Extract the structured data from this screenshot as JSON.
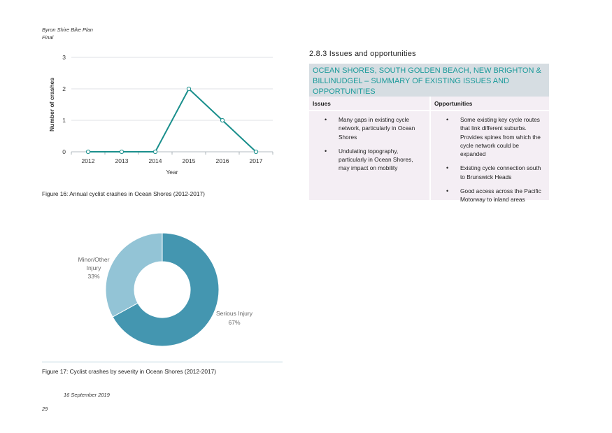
{
  "header": {
    "line1": "Byron Shire Bike Plan",
    "line2": "Final"
  },
  "figure16": {
    "caption": "Figure 16: Annual cyclist crashes in Ocean Shores (2012-2017)"
  },
  "figure17": {
    "caption": "Figure 17: Cyclist crashes by severity in Ocean Shores (2012-2017)"
  },
  "chart_data": [
    {
      "type": "line",
      "title": "",
      "xlabel": "Year",
      "ylabel": "Number of crashes",
      "x": [
        "2012",
        "2013",
        "2014",
        "2015",
        "2016",
        "2017"
      ],
      "series": [
        {
          "values": [
            0,
            0,
            0,
            2,
            1,
            0
          ]
        }
      ],
      "ylim": [
        0,
        3
      ],
      "yticks": [
        "0",
        "1",
        "2",
        "3"
      ],
      "grid": true,
      "color": "#1a8f8c"
    },
    {
      "type": "pie",
      "donut": true,
      "slices": [
        {
          "label": "Serious Injury",
          "value": 67,
          "value_label": "67%",
          "color": "#4496b0"
        },
        {
          "label": "Minor/Other Injury",
          "label_lines": [
            "Minor/Other",
            "Injury"
          ],
          "value": 33,
          "value_label": "33%",
          "color": "#93c4d6"
        }
      ]
    }
  ],
  "section": {
    "title": "2.8.3 Issues and opportunities"
  },
  "table": {
    "heading": "OCEAN SHORES, SOUTH GOLDEN BEACH, NEW BRIGHTON & BILLINUDGEL – SUMMARY OF EXISTING ISSUES AND OPPORTUNITIES",
    "issues_header": "Issues",
    "opportunities_header": "Opportunities",
    "issues": [
      "Many gaps in existing cycle network, particularly in Ocean Shores",
      "Undulating topography, particularly in Ocean Shores, may impact on mobility"
    ],
    "opportunities": [
      "Some existing key cycle routes that link different suburbs. Provides spines from which the cycle network could be expanded",
      "Existing cycle connection south to Brunswick Heads",
      "Good access across the Pacific Motorway to inland areas"
    ]
  },
  "footer": {
    "date": "16 September 2019",
    "page": "29"
  }
}
